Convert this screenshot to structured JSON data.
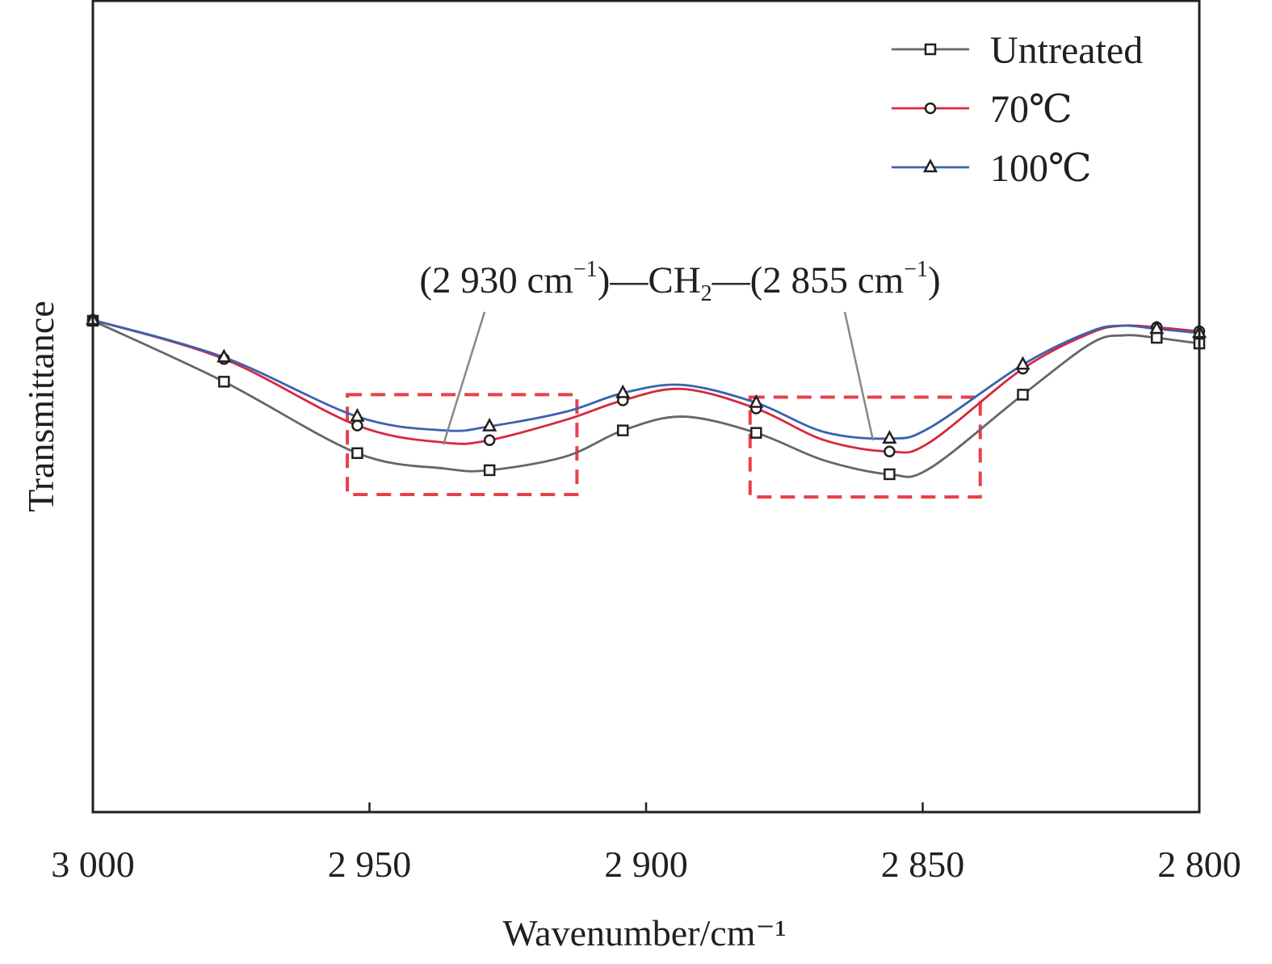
{
  "chart_data": {
    "type": "line",
    "title": "",
    "xlabel": "Wavenumber/cm⁻¹",
    "ylabel": "Transmittance",
    "xlim": [
      3000,
      2800
    ],
    "ylim": [
      0,
      100
    ],
    "xticks": [
      3000,
      2950,
      2900,
      2850,
      2800
    ],
    "xtick_labels": [
      "3 000",
      "2 950",
      "2 900",
      "2 850",
      "2 800"
    ],
    "grid": false,
    "legend_position": "top-right",
    "x": [
      3000,
      2976.3,
      2952.2,
      2936.4,
      2928.3,
      2914.5,
      2904.2,
      2893.4,
      2880.1,
      2867.8,
      2856.0,
      2848.8,
      2831.9,
      2819.6,
      2813.7,
      2807.7,
      2800
    ],
    "marker_indices": [
      0,
      1,
      2,
      4,
      6,
      8,
      10,
      12,
      15,
      16
    ],
    "series": [
      {
        "name": "Untreated",
        "color": "#666666",
        "marker": "square",
        "values": [
          60.5,
          53.0,
          44.2,
          42.3,
          42.1,
          43.8,
          47.0,
          48.7,
          46.7,
          43.3,
          41.6,
          42.3,
          51.4,
          57.7,
          58.7,
          58.4,
          57.7
        ]
      },
      {
        "name": "70℃",
        "color": "#d7283c",
        "marker": "circle",
        "values": [
          60.6,
          55.8,
          47.6,
          45.5,
          45.8,
          48.3,
          50.7,
          52.1,
          49.7,
          45.8,
          44.4,
          45.5,
          54.6,
          59.0,
          59.9,
          59.7,
          59.2
        ]
      },
      {
        "name": "100℃",
        "color": "#3a62b0",
        "marker": "triangle",
        "values": [
          60.6,
          56.0,
          48.7,
          47.0,
          47.5,
          49.3,
          51.6,
          52.6,
          50.4,
          46.8,
          46.0,
          47.3,
          55.1,
          59.2,
          59.9,
          59.5,
          59.0
        ]
      }
    ],
    "annotation": {
      "text_parts": [
        "(2 930 cm",
        "−1",
        ")—CH",
        "2",
        "—(2 855 cm",
        "−1",
        ")"
      ],
      "boxes": [
        {
          "label": "2930",
          "x": [
            2954.0,
            2912.5
          ],
          "y": [
            39.1,
            51.4
          ],
          "color": "#e8404a"
        },
        {
          "label": "2855",
          "x": [
            2881.2,
            2839.6
          ],
          "y": [
            38.8,
            51.1
          ],
          "color": "#e8404a"
        }
      ]
    }
  }
}
